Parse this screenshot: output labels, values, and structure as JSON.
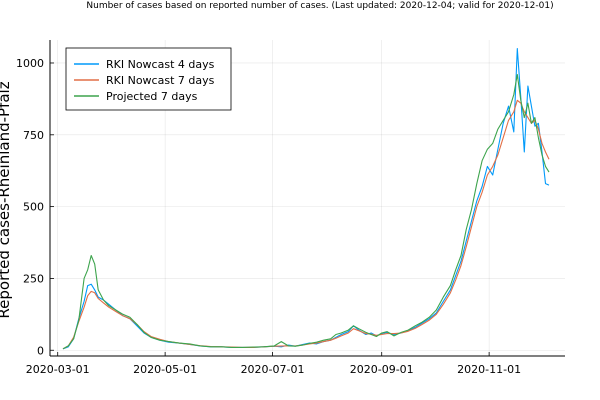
{
  "chart_data": {
    "type": "line",
    "title": "Number of cases based on reported number of cases. (Last updated: 2020-12-04; valid for 2020-12-01)",
    "xlabel": "",
    "ylabel": "Reported cases-Rheinland-Pfalz",
    "x_start": "2020-03-04",
    "x_end": "2020-12-01",
    "xlim_days": [
      0,
      276
    ],
    "ylim": [
      -20,
      1080
    ],
    "grid": true,
    "legend_position": "top-left",
    "x_ticks": [
      {
        "label": "2020-03-01",
        "day": -3
      },
      {
        "label": "2020-05-01",
        "day": 58
      },
      {
        "label": "2020-07-01",
        "day": 119
      },
      {
        "label": "2020-09-01",
        "day": 181
      },
      {
        "label": "2020-11-01",
        "day": 242
      }
    ],
    "y_ticks": [
      {
        "label": "0",
        "value": 0
      },
      {
        "label": "250",
        "value": 250
      },
      {
        "label": "500",
        "value": 500
      },
      {
        "label": "750",
        "value": 750
      },
      {
        "label": "1000",
        "value": 1000
      }
    ],
    "series": [
      {
        "name": "RKI Nowcast 4 days",
        "color": "#009AFA",
        "points": [
          [
            0,
            5
          ],
          [
            3,
            12
          ],
          [
            6,
            40
          ],
          [
            9,
            110
          ],
          [
            12,
            170
          ],
          [
            14,
            225
          ],
          [
            16,
            230
          ],
          [
            18,
            210
          ],
          [
            20,
            185
          ],
          [
            23,
            175
          ],
          [
            26,
            160
          ],
          [
            30,
            140
          ],
          [
            34,
            120
          ],
          [
            38,
            110
          ],
          [
            42,
            85
          ],
          [
            46,
            60
          ],
          [
            50,
            45
          ],
          [
            55,
            35
          ],
          [
            60,
            28
          ],
          [
            66,
            25
          ],
          [
            72,
            20
          ],
          [
            78,
            15
          ],
          [
            84,
            12
          ],
          [
            90,
            12
          ],
          [
            96,
            10
          ],
          [
            102,
            10
          ],
          [
            108,
            10
          ],
          [
            114,
            12
          ],
          [
            120,
            14
          ],
          [
            124,
            12
          ],
          [
            128,
            18
          ],
          [
            132,
            14
          ],
          [
            136,
            20
          ],
          [
            140,
            25
          ],
          [
            144,
            22
          ],
          [
            148,
            30
          ],
          [
            152,
            35
          ],
          [
            155,
            45
          ],
          [
            158,
            55
          ],
          [
            162,
            65
          ],
          [
            165,
            85
          ],
          [
            168,
            70
          ],
          [
            172,
            55
          ],
          [
            175,
            60
          ],
          [
            178,
            50
          ],
          [
            181,
            58
          ],
          [
            184,
            62
          ],
          [
            188,
            55
          ],
          [
            192,
            60
          ],
          [
            196,
            68
          ],
          [
            200,
            80
          ],
          [
            204,
            95
          ],
          [
            208,
            110
          ],
          [
            212,
            130
          ],
          [
            216,
            170
          ],
          [
            220,
            210
          ],
          [
            223,
            260
          ],
          [
            226,
            310
          ],
          [
            229,
            380
          ],
          [
            232,
            450
          ],
          [
            235,
            520
          ],
          [
            238,
            570
          ],
          [
            241,
            640
          ],
          [
            244,
            610
          ],
          [
            247,
            700
          ],
          [
            250,
            790
          ],
          [
            253,
            850
          ],
          [
            256,
            760
          ],
          [
            258,
            1050
          ],
          [
            260,
            880
          ],
          [
            262,
            690
          ],
          [
            264,
            920
          ],
          [
            266,
            850
          ],
          [
            268,
            780
          ],
          [
            270,
            790
          ],
          [
            272,
            690
          ],
          [
            274,
            580
          ],
          [
            276,
            575
          ]
        ]
      },
      {
        "name": "RKI Nowcast 7 days",
        "color": "#E26F46",
        "points": [
          [
            0,
            5
          ],
          [
            3,
            15
          ],
          [
            6,
            45
          ],
          [
            9,
            100
          ],
          [
            12,
            150
          ],
          [
            14,
            190
          ],
          [
            16,
            205
          ],
          [
            18,
            200
          ],
          [
            20,
            180
          ],
          [
            23,
            165
          ],
          [
            26,
            150
          ],
          [
            30,
            135
          ],
          [
            34,
            120
          ],
          [
            38,
            110
          ],
          [
            42,
            90
          ],
          [
            46,
            65
          ],
          [
            50,
            48
          ],
          [
            55,
            38
          ],
          [
            60,
            30
          ],
          [
            66,
            25
          ],
          [
            72,
            20
          ],
          [
            78,
            16
          ],
          [
            84,
            13
          ],
          [
            90,
            12
          ],
          [
            96,
            11
          ],
          [
            102,
            10
          ],
          [
            108,
            10
          ],
          [
            114,
            12
          ],
          [
            120,
            14
          ],
          [
            126,
            15
          ],
          [
            132,
            15
          ],
          [
            136,
            18
          ],
          [
            140,
            22
          ],
          [
            144,
            25
          ],
          [
            148,
            30
          ],
          [
            152,
            35
          ],
          [
            155,
            42
          ],
          [
            158,
            50
          ],
          [
            162,
            60
          ],
          [
            165,
            75
          ],
          [
            168,
            68
          ],
          [
            172,
            58
          ],
          [
            175,
            56
          ],
          [
            178,
            52
          ],
          [
            181,
            55
          ],
          [
            184,
            58
          ],
          [
            188,
            58
          ],
          [
            192,
            60
          ],
          [
            196,
            66
          ],
          [
            200,
            76
          ],
          [
            204,
            90
          ],
          [
            208,
            105
          ],
          [
            212,
            125
          ],
          [
            216,
            160
          ],
          [
            220,
            200
          ],
          [
            223,
            245
          ],
          [
            226,
            295
          ],
          [
            229,
            360
          ],
          [
            232,
            430
          ],
          [
            235,
            500
          ],
          [
            238,
            550
          ],
          [
            241,
            610
          ],
          [
            244,
            640
          ],
          [
            247,
            680
          ],
          [
            250,
            740
          ],
          [
            253,
            800
          ],
          [
            256,
            830
          ],
          [
            258,
            870
          ],
          [
            260,
            860
          ],
          [
            262,
            830
          ],
          [
            264,
            810
          ],
          [
            266,
            790
          ],
          [
            268,
            800
          ],
          [
            270,
            770
          ],
          [
            272,
            720
          ],
          [
            274,
            690
          ],
          [
            276,
            665
          ]
        ]
      },
      {
        "name": "Projected 7 days",
        "color": "#3DA44D",
        "points": [
          [
            0,
            5
          ],
          [
            3,
            15
          ],
          [
            6,
            40
          ],
          [
            9,
            105
          ],
          [
            12,
            250
          ],
          [
            14,
            280
          ],
          [
            16,
            330
          ],
          [
            18,
            300
          ],
          [
            20,
            210
          ],
          [
            23,
            175
          ],
          [
            26,
            155
          ],
          [
            30,
            140
          ],
          [
            34,
            125
          ],
          [
            38,
            115
          ],
          [
            42,
            90
          ],
          [
            46,
            62
          ],
          [
            50,
            45
          ],
          [
            55,
            35
          ],
          [
            60,
            30
          ],
          [
            66,
            25
          ],
          [
            72,
            22
          ],
          [
            78,
            15
          ],
          [
            84,
            12
          ],
          [
            90,
            12
          ],
          [
            96,
            10
          ],
          [
            102,
            10
          ],
          [
            108,
            11
          ],
          [
            114,
            12
          ],
          [
            120,
            15
          ],
          [
            124,
            30
          ],
          [
            128,
            15
          ],
          [
            132,
            14
          ],
          [
            136,
            18
          ],
          [
            140,
            24
          ],
          [
            144,
            28
          ],
          [
            148,
            35
          ],
          [
            152,
            40
          ],
          [
            155,
            55
          ],
          [
            158,
            60
          ],
          [
            162,
            70
          ],
          [
            165,
            85
          ],
          [
            168,
            75
          ],
          [
            172,
            62
          ],
          [
            175,
            55
          ],
          [
            178,
            48
          ],
          [
            181,
            60
          ],
          [
            184,
            65
          ],
          [
            188,
            50
          ],
          [
            192,
            62
          ],
          [
            196,
            70
          ],
          [
            200,
            85
          ],
          [
            204,
            98
          ],
          [
            208,
            115
          ],
          [
            212,
            140
          ],
          [
            216,
            185
          ],
          [
            220,
            225
          ],
          [
            223,
            280
          ],
          [
            226,
            330
          ],
          [
            229,
            420
          ],
          [
            232,
            490
          ],
          [
            235,
            580
          ],
          [
            238,
            660
          ],
          [
            241,
            700
          ],
          [
            244,
            720
          ],
          [
            247,
            770
          ],
          [
            250,
            800
          ],
          [
            253,
            830
          ],
          [
            256,
            890
          ],
          [
            258,
            960
          ],
          [
            260,
            870
          ],
          [
            262,
            810
          ],
          [
            264,
            860
          ],
          [
            266,
            790
          ],
          [
            268,
            810
          ],
          [
            270,
            740
          ],
          [
            272,
            680
          ],
          [
            274,
            640
          ],
          [
            276,
            620
          ]
        ]
      }
    ]
  }
}
